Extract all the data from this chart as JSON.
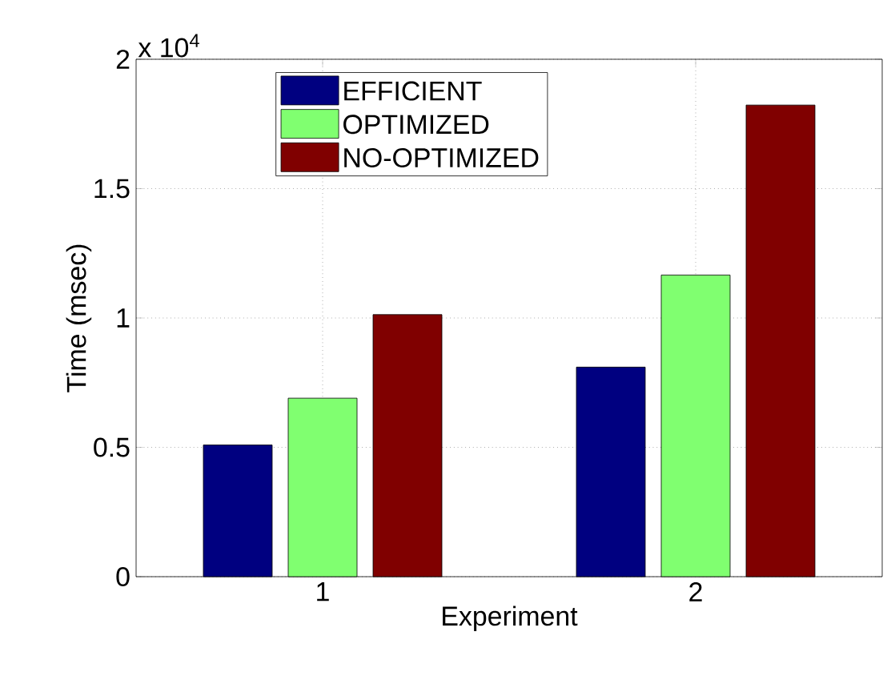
{
  "chart_data": {
    "type": "bar",
    "xlabel": "Experiment",
    "ylabel": "Time (msec)",
    "categories": [
      "1",
      "2"
    ],
    "series": [
      {
        "name": "EFFICIENT",
        "color": "#000080",
        "values": [
          0.509,
          0.81
        ]
      },
      {
        "name": "OPTIMIZED",
        "color": "#80ff70",
        "values": [
          0.69,
          1.166
        ]
      },
      {
        "name": "NO-OPTIMIZED",
        "color": "#800000",
        "values": [
          1.013,
          1.823
        ]
      }
    ],
    "ylim": [
      0,
      2
    ],
    "yticks": [
      0,
      0.5,
      1,
      1.5,
      2
    ],
    "annotations": [
      "x 10$^{4}$"
    ],
    "grid": true,
    "legend": "top left"
  }
}
